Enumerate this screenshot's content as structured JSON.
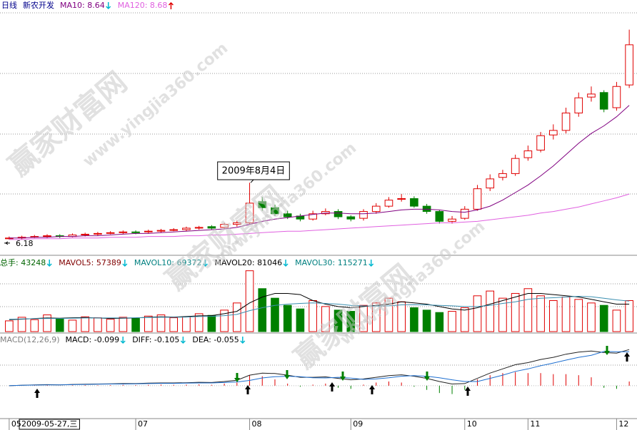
{
  "chart_data": [
    {
      "type": "candlestick",
      "period": "日线",
      "title": "新农开发",
      "legend": [
        "MA10: 8.64",
        "MA120: 8.68"
      ],
      "legend_trend": [
        "down",
        "up"
      ],
      "up_color": "#e00000",
      "down_color": "#008000",
      "categories": [
        "05",
        null,
        null,
        null,
        null,
        null,
        null,
        null,
        null,
        null,
        "07",
        null,
        null,
        null,
        null,
        null,
        null,
        null,
        null,
        "08",
        null,
        null,
        null,
        null,
        null,
        null,
        null,
        "09",
        null,
        null,
        null,
        null,
        null,
        null,
        null,
        null,
        "10",
        null,
        null,
        null,
        null,
        "11",
        null,
        null,
        null,
        null,
        null,
        null,
        "12",
        null
      ],
      "cursor_label": "2009-05-27,三",
      "annotation": "2009年8月4日",
      "low_label": 6.18,
      "ylim": [
        6.0,
        9.2
      ],
      "open": [
        6.19,
        6.2,
        6.22,
        6.22,
        6.23,
        6.22,
        6.24,
        6.25,
        6.27,
        6.27,
        6.28,
        6.28,
        6.29,
        6.31,
        6.31,
        6.33,
        6.35,
        6.34,
        6.38,
        6.4,
        6.68,
        6.6,
        6.52,
        6.49,
        6.45,
        6.52,
        6.55,
        6.48,
        6.46,
        6.55,
        6.62,
        6.71,
        6.72,
        6.62,
        6.55,
        6.42,
        6.46,
        6.58,
        6.86,
        7.0,
        7.05,
        7.26,
        7.36,
        7.56,
        7.62,
        7.85,
        8.06,
        8.12,
        7.92,
        8.22
      ],
      "high": [
        6.22,
        6.23,
        6.24,
        6.25,
        6.25,
        6.26,
        6.27,
        6.28,
        6.29,
        6.3,
        6.3,
        6.31,
        6.32,
        6.33,
        6.35,
        6.36,
        6.37,
        6.4,
        6.43,
        6.93,
        6.74,
        6.64,
        6.56,
        6.52,
        6.56,
        6.59,
        6.58,
        6.5,
        6.58,
        6.66,
        6.74,
        6.78,
        6.75,
        6.65,
        6.57,
        6.49,
        6.62,
        6.9,
        7.04,
        7.1,
        7.3,
        7.42,
        7.6,
        7.7,
        7.92,
        8.12,
        8.2,
        8.15,
        8.26,
        8.95
      ],
      "low": [
        6.18,
        6.18,
        6.2,
        6.2,
        6.2,
        6.21,
        6.22,
        6.23,
        6.25,
        6.25,
        6.25,
        6.26,
        6.27,
        6.29,
        6.29,
        6.31,
        6.31,
        6.32,
        6.35,
        6.38,
        6.56,
        6.49,
        6.45,
        6.42,
        6.43,
        6.5,
        6.45,
        6.42,
        6.43,
        6.52,
        6.6,
        6.68,
        6.6,
        6.52,
        6.39,
        6.39,
        6.44,
        6.56,
        6.82,
        6.96,
        7.02,
        7.22,
        7.33,
        7.5,
        7.58,
        7.8,
        8.0,
        7.86,
        7.88,
        8.18
      ],
      "close": [
        6.2,
        6.21,
        6.22,
        6.23,
        6.22,
        6.24,
        6.25,
        6.26,
        6.27,
        6.28,
        6.27,
        6.29,
        6.3,
        6.31,
        6.33,
        6.34,
        6.33,
        6.38,
        6.4,
        6.66,
        6.6,
        6.52,
        6.48,
        6.45,
        6.52,
        6.55,
        6.48,
        6.45,
        6.55,
        6.62,
        6.7,
        6.72,
        6.62,
        6.55,
        6.42,
        6.45,
        6.58,
        6.85,
        6.98,
        7.05,
        7.25,
        7.35,
        7.55,
        7.62,
        7.85,
        8.05,
        8.1,
        7.9,
        8.2,
        8.75
      ],
      "series": [
        {
          "color": "#800080",
          "values": [
            6.2,
            6.2,
            6.21,
            6.21,
            6.22,
            6.22,
            6.23,
            6.23,
            6.24,
            6.25,
            6.26,
            6.26,
            6.27,
            6.28,
            6.29,
            6.3,
            6.31,
            6.32,
            6.34,
            6.38,
            6.42,
            6.45,
            6.47,
            6.49,
            6.51,
            6.53,
            6.53,
            6.52,
            6.52,
            6.53,
            6.55,
            6.57,
            6.58,
            6.58,
            6.57,
            6.55,
            6.54,
            6.57,
            6.62,
            6.7,
            6.8,
            6.9,
            7.02,
            7.15,
            7.3,
            7.45,
            7.58,
            7.68,
            7.8,
            7.95
          ]
        },
        {
          "color": "#e060e0",
          "values": [
            6.18,
            6.18,
            6.19,
            6.19,
            6.19,
            6.2,
            6.2,
            6.2,
            6.21,
            6.21,
            6.21,
            6.22,
            6.22,
            6.22,
            6.23,
            6.23,
            6.24,
            6.24,
            6.25,
            6.26,
            6.27,
            6.28,
            6.29,
            6.29,
            6.3,
            6.31,
            6.32,
            6.33,
            6.34,
            6.35,
            6.36,
            6.37,
            6.38,
            6.39,
            6.4,
            6.4,
            6.41,
            6.42,
            6.44,
            6.46,
            6.48,
            6.5,
            6.53,
            6.55,
            6.58,
            6.61,
            6.65,
            6.69,
            6.73,
            6.78
          ]
        }
      ]
    },
    {
      "type": "bar",
      "legend": [
        "总手: 43248",
        "MAVOL5: 57389",
        "MAVOL10: 69372",
        "MAVOL20: 81046",
        "MAVOL30: 115271"
      ],
      "legend_colors": [
        "#006400",
        "#800000",
        "#008080",
        "#000000",
        "#008080"
      ],
      "ylim": [
        0,
        260000
      ],
      "values": [
        45000,
        60000,
        50000,
        70000,
        55000,
        48000,
        62000,
        58000,
        52000,
        60000,
        55000,
        65000,
        70000,
        58000,
        62000,
        75000,
        68000,
        90000,
        120000,
        255000,
        180000,
        140000,
        110000,
        95000,
        130000,
        105000,
        90000,
        85000,
        110000,
        120000,
        140000,
        125000,
        100000,
        90000,
        80000,
        85000,
        100000,
        150000,
        170000,
        140000,
        160000,
        180000,
        150000,
        130000,
        145000,
        135000,
        120000,
        110000,
        90000,
        130000
      ],
      "series": [
        {
          "color": "#000000",
          "values": [
            50000,
            52000,
            55000,
            57000,
            56000,
            58000,
            59000,
            57000,
            55000,
            56000,
            57000,
            60000,
            62000,
            61000,
            63000,
            66000,
            67000,
            75000,
            85000,
            120000,
            145000,
            160000,
            160000,
            155000,
            130000,
            115000,
            105000,
            100000,
            105000,
            110000,
            115000,
            125000,
            120000,
            115000,
            105000,
            95000,
            90000,
            100000,
            115000,
            130000,
            145000,
            160000,
            160000,
            155000,
            150000,
            145000,
            135000,
            125000,
            115000,
            115000
          ]
        },
        {
          "color": "#3a8fb0",
          "values": [
            52000,
            53000,
            54000,
            55000,
            55000,
            56000,
            57000,
            57000,
            57000,
            57000,
            58000,
            59000,
            60000,
            60000,
            61000,
            63000,
            64000,
            67000,
            72000,
            88000,
            100000,
            110000,
            115000,
            118000,
            120000,
            118000,
            115000,
            110000,
            108000,
            107000,
            108000,
            112000,
            113000,
            112000,
            110000,
            108000,
            105000,
            105000,
            110000,
            118000,
            125000,
            135000,
            140000,
            142000,
            145000,
            148000,
            146000,
            140000,
            133000,
            128000
          ]
        }
      ]
    },
    {
      "type": "macd",
      "legend": [
        "MACD(12,26,9)",
        "MACD: -0.099",
        "DIFF: -0.105",
        "DEA: -0.055"
      ],
      "legend_colors": [
        "#808080",
        "#000000",
        "#000000",
        "#000000"
      ],
      "ylim": [
        -0.15,
        0.2
      ],
      "values": [
        0,
        0,
        0.002,
        0.003,
        0,
        0.002,
        0.003,
        0.002,
        0.003,
        0.004,
        0.003,
        0.004,
        0.005,
        0.004,
        0.005,
        0.006,
        0.004,
        0.01,
        0.015,
        0.05,
        0.045,
        0.03,
        0.01,
        -0.005,
        0.005,
        0.01,
        -0.01,
        -0.015,
        0.005,
        0.015,
        0.02,
        0.015,
        -0.005,
        -0.02,
        -0.035,
        -0.04,
        -0.02,
        0.03,
        0.05,
        0.06,
        0.065,
        0.06,
        0.06,
        0.055,
        0.055,
        0.05,
        0.04,
        -0.01,
        -0.015,
        0.02
      ],
      "series": [
        {
          "color": "#222222",
          "values": [
            0,
            0.002,
            0.004,
            0.005,
            0.004,
            0.006,
            0.007,
            0.008,
            0.009,
            0.01,
            0.01,
            0.012,
            0.013,
            0.013,
            0.014,
            0.016,
            0.015,
            0.02,
            0.026,
            0.05,
            0.06,
            0.058,
            0.05,
            0.04,
            0.04,
            0.042,
            0.035,
            0.028,
            0.032,
            0.04,
            0.048,
            0.052,
            0.045,
            0.035,
            0.02,
            0.008,
            0.01,
            0.035,
            0.06,
            0.08,
            0.1,
            0.11,
            0.125,
            0.135,
            0.15,
            0.16,
            0.165,
            0.158,
            0.155,
            0.172
          ]
        },
        {
          "color": "#1e6fd0",
          "values": [
            0,
            0.002,
            0.003,
            0.004,
            0.004,
            0.005,
            0.006,
            0.007,
            0.008,
            0.008,
            0.009,
            0.01,
            0.011,
            0.011,
            0.012,
            0.013,
            0.013,
            0.015,
            0.018,
            0.025,
            0.037,
            0.043,
            0.045,
            0.043,
            0.038,
            0.037,
            0.04,
            0.036,
            0.03,
            0.032,
            0.038,
            0.045,
            0.048,
            0.045,
            0.038,
            0.028,
            0.02,
            0.02,
            0.035,
            0.05,
            0.068,
            0.08,
            0.095,
            0.108,
            0.122,
            0.135,
            0.145,
            0.163,
            0.162,
            0.162
          ]
        }
      ]
    }
  ],
  "watermark": "赢家财富网",
  "watermark_url": "www.yingjia360.com"
}
